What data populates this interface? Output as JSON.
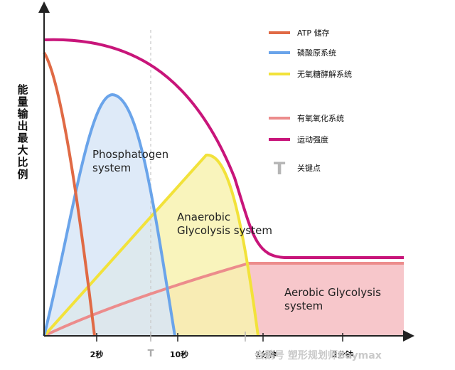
{
  "chart_data": {
    "type": "area",
    "ylabel": "能量输出最大比例",
    "x_ticks": [
      "2秒",
      "T",
      "10秒",
      "1分钟",
      "2分钟"
    ],
    "legend": [
      {
        "label": "ATP 储存",
        "color": "#e06a45",
        "kind": "line"
      },
      {
        "label": "磷酸原系统",
        "color": "#6aa4ea",
        "kind": "line"
      },
      {
        "label": "无氧糖酵解系统",
        "color": "#f2e23a",
        "kind": "line"
      },
      {
        "label": "有氧氧化系统",
        "color": "#ec8c8c",
        "kind": "line"
      },
      {
        "label": "运动强度",
        "color": "#c8157a",
        "kind": "line"
      },
      {
        "label": "关键点",
        "color": "#b5b5b5",
        "kind": "marker",
        "symbol": "T"
      }
    ],
    "region_labels": {
      "phosphagen": [
        "Phosphatogen",
        "system"
      ],
      "anaerobic": [
        "Anaerobic",
        "Glycolysis system"
      ],
      "aerobic": [
        "Aerobic Glycolysis",
        "system"
      ]
    },
    "watermark": "会鹅号 塑形规划师Baymax"
  }
}
